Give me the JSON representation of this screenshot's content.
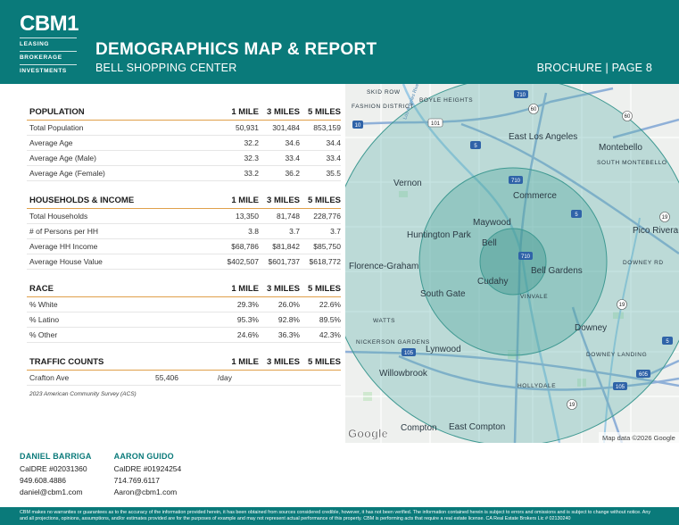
{
  "header": {
    "logo_main": "CBM1",
    "logo_lines": [
      "LEASING",
      "BROKERAGE",
      "INVESTMENTS"
    ],
    "title": "DEMOGRAPHICS MAP & REPORT",
    "subtitle": "BELL SHOPPING CENTER",
    "page_info": "BROCHURE | PAGE 8"
  },
  "colors": {
    "brand_teal": "#0a7a7a",
    "accent_orange": "#e0a04a"
  },
  "population": {
    "heading": "POPULATION",
    "cols": [
      "1 MILE",
      "3 MILES",
      "5 MILES"
    ],
    "rows": [
      {
        "label": "Total Population",
        "v": [
          "50,931",
          "301,484",
          "853,159"
        ]
      },
      {
        "label": "Average Age",
        "v": [
          "32.2",
          "34.6",
          "34.4"
        ]
      },
      {
        "label": "Average Age (Male)",
        "v": [
          "32.3",
          "33.4",
          "33.4"
        ]
      },
      {
        "label": "Average Age (Female)",
        "v": [
          "33.2",
          "36.2",
          "35.5"
        ]
      }
    ]
  },
  "households": {
    "heading": "HOUSEHOLDS & INCOME",
    "cols": [
      "1 MILE",
      "3 MILES",
      "5 MILES"
    ],
    "rows": [
      {
        "label": "Total Households",
        "v": [
          "13,350",
          "81,748",
          "228,776"
        ]
      },
      {
        "label": "# of Persons per HH",
        "v": [
          "3.8",
          "3.7",
          "3.7"
        ]
      },
      {
        "label": "Average HH Income",
        "v": [
          "$68,786",
          "$81,842",
          "$85,750"
        ]
      },
      {
        "label": "Average House Value",
        "v": [
          "$402,507",
          "$601,737",
          "$618,772"
        ]
      }
    ]
  },
  "race": {
    "heading": "RACE",
    "cols": [
      "1 MILE",
      "3 MILES",
      "5 MILES"
    ],
    "rows": [
      {
        "label": "% White",
        "v": [
          "29.3%",
          "26.0%",
          "22.6%"
        ]
      },
      {
        "label": "% Latino",
        "v": [
          "95.3%",
          "92.8%",
          "89.5%"
        ]
      },
      {
        "label": "% Other",
        "v": [
          "24.6%",
          "36.3%",
          "42.3%"
        ]
      }
    ]
  },
  "traffic": {
    "heading": "TRAFFIC COUNTS",
    "cols": [
      "1 MILE",
      "3 MILES",
      "5 MILES"
    ],
    "street": "Crafton Ave",
    "count": "55,406",
    "unit": "/day"
  },
  "source": "2023 American Community Survey (ACS)",
  "map": {
    "labels": {
      "skid_row": "SKID ROW",
      "boyle_heights": "BOYLE HEIGHTS",
      "fashion_district": "FASHION DISTRICT",
      "east_la": "East Los Angeles",
      "montebello": "Montebello",
      "south_montebello": "SOUTH MONTEBELLO",
      "vernon": "Vernon",
      "commerce": "Commerce",
      "maywood": "Maywood",
      "huntington_park": "Huntington Park",
      "bell": "Bell",
      "pico_rivera": "Pico Rivera",
      "downey_rd": "DOWNEY RD",
      "florence_graham": "Florence-Graham",
      "bell_gardens": "Bell Gardens",
      "cudahy": "Cudahy",
      "south_gate": "South Gate",
      "vinvale": "VINVALE",
      "watts": "WATTS",
      "downey": "Downey",
      "nickerson_gardens": "NICKERSON GARDENS",
      "lynwood": "Lynwood",
      "downey_landing": "DOWNEY LANDING",
      "willowbrook": "Willowbrook",
      "hollydale": "HOLLYDALE",
      "compton": "Compton",
      "east_compton": "East Compton",
      "la_river": "Los Angeles River"
    },
    "shields": [
      "710",
      "101",
      "60",
      "60",
      "5",
      "10",
      "710",
      "5",
      "19",
      "710",
      "19",
      "5",
      "105",
      "605",
      "105",
      "19"
    ],
    "google": "Google",
    "attribution": "Map data ©2026 Google"
  },
  "contacts": [
    {
      "name": "DANIEL BARRIGA",
      "dre": "CalDRE #02031360",
      "phone": "949.608.4886",
      "email": "daniel@cbm1.com"
    },
    {
      "name": "AARON GUIDO",
      "dre": "CalDRE #01924254",
      "phone": "714.769.6117",
      "email": "Aaron@cbm1.com"
    }
  ],
  "footer": {
    "disclaimer": "CBM makes no warranties or guarantees as to the accuracy of the information provided herein, it has been obtained from sources considered credible, however, it has not been verified. The information contained herein is subject to errors and omissions and is subject to change without notice. Any and all projections, opinions, assumptions, and/or estimates provided are for the purposes of example and may not represent actual performance of this property. CBM is performing acts that require a real estate license. CA Real Estate Brokers Lic # 02130240"
  }
}
